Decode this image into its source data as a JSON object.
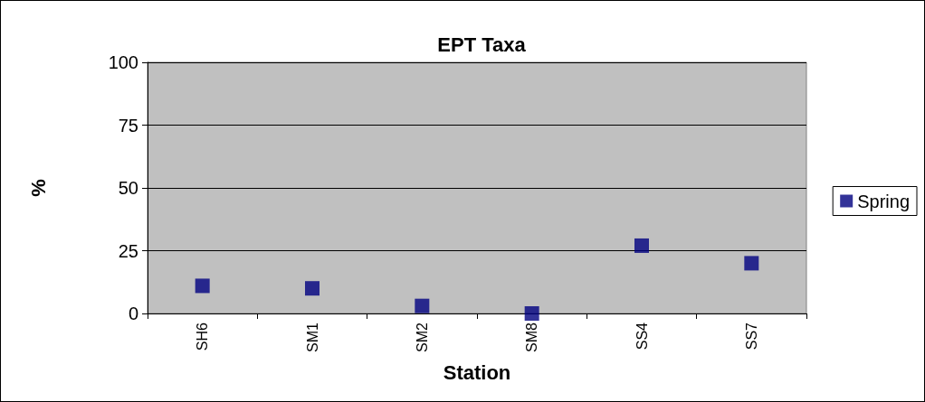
{
  "chart_data": {
    "type": "scatter",
    "title": "EPT Taxa",
    "xlabel": "Station",
    "ylabel": "%",
    "categories": [
      "SH6",
      "SM1",
      "SM2",
      "SM8",
      "SS4",
      "SS7"
    ],
    "series": [
      {
        "name": "Spring",
        "color": "#000080",
        "values": [
          11,
          10,
          3,
          0,
          27,
          20
        ]
      }
    ],
    "ylim": [
      0,
      100
    ],
    "yticks": [
      0,
      25,
      50,
      75,
      100
    ],
    "grid": "y",
    "legend": "right",
    "marker": "square"
  }
}
